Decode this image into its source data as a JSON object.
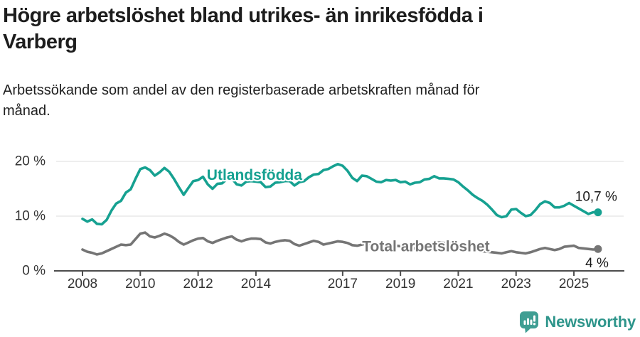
{
  "header": {
    "title": "Högre arbetslöshet bland utrikes- än inrikesfödda i Varberg",
    "title_lines": [
      "Högre arbetslöshet bland utrikes- än inrikesfödda i",
      "Varberg"
    ],
    "subtitle": "Arbetssökande som andel av den registerbaserade arbetskraften månad för månad.",
    "subtitle_lines": [
      "Arbetssökande som andel av den registerbaserade arbetskraften månad för",
      "månad."
    ]
  },
  "footer": {
    "brand": "Newsworthy",
    "brand_color": "#2e958b",
    "logo_icon": "speech-bubble-bar-chart"
  },
  "chart_data": {
    "type": "line",
    "title": "Högre arbetslöshet bland utrikes- än inrikesfödda i Varberg",
    "subtitle": "Arbetssökande som andel av den registerbaserade arbetskraften månad för månad.",
    "unit": "%",
    "grid": "horizontal-only",
    "x_start": 2008,
    "x_step": 0.16666667,
    "x_ticks": [
      2008,
      2010,
      2012,
      2014,
      2017,
      2019,
      2021,
      2023,
      2025
    ],
    "y_ticks": [
      0,
      10,
      20
    ],
    "y_tick_labels": [
      "0 %",
      "10 %",
      "20 %"
    ],
    "ylim": [
      0,
      21.5
    ],
    "xlim": [
      2007.1,
      2026.8
    ],
    "series": [
      {
        "name": "Utlandsfödda",
        "color": "#16a191",
        "end_label": "10,7 %",
        "end_value": 10.7,
        "label_pos": {
          "x": 2013.95,
          "y": 17.5
        },
        "values": [
          9.5,
          9.0,
          9.4,
          8.6,
          8.5,
          9.3,
          11.0,
          12.3,
          12.8,
          14.3,
          14.9,
          16.8,
          18.6,
          18.9,
          18.4,
          17.4,
          18.0,
          18.8,
          18.1,
          16.8,
          15.3,
          13.9,
          15.2,
          16.4,
          16.6,
          17.2,
          15.8,
          15.0,
          15.9,
          16.0,
          16.8,
          16.9,
          15.8,
          15.6,
          16.3,
          16.4,
          16.3,
          16.2,
          15.3,
          15.4,
          16.1,
          16.2,
          16.4,
          16.4,
          15.6,
          16.2,
          16.4,
          17.1,
          17.6,
          17.7,
          18.4,
          18.6,
          19.1,
          19.5,
          19.2,
          18.3,
          17.0,
          16.4,
          17.4,
          17.3,
          16.8,
          16.3,
          16.2,
          16.6,
          16.5,
          16.6,
          16.2,
          16.3,
          15.8,
          16.1,
          16.2,
          16.7,
          16.8,
          17.3,
          16.9,
          16.9,
          16.8,
          16.7,
          16.2,
          15.4,
          14.7,
          13.9,
          13.3,
          12.8,
          12.1,
          11.2,
          10.2,
          9.8,
          10.0,
          11.2,
          11.3,
          10.6,
          10.0,
          10.2,
          11.1,
          12.2,
          12.7,
          12.4,
          11.6,
          11.6,
          11.9,
          12.4,
          11.9,
          11.4,
          10.9,
          10.4,
          10.7,
          10.7
        ]
      },
      {
        "name": "Total arbetslöshet",
        "color": "#757575",
        "end_label": "4 %",
        "end_value": 4,
        "label_pos": {
          "x": 2019.88,
          "y": 4.4
        },
        "values": [
          3.9,
          3.5,
          3.3,
          3.0,
          3.2,
          3.6,
          4.0,
          4.4,
          4.8,
          4.7,
          4.8,
          5.8,
          6.8,
          7.0,
          6.3,
          6.1,
          6.4,
          6.8,
          6.5,
          6.0,
          5.3,
          4.8,
          5.2,
          5.6,
          5.9,
          6.0,
          5.4,
          5.1,
          5.5,
          5.8,
          6.1,
          6.3,
          5.7,
          5.4,
          5.7,
          5.9,
          5.9,
          5.8,
          5.2,
          5.0,
          5.3,
          5.5,
          5.6,
          5.5,
          4.9,
          4.6,
          4.9,
          5.2,
          5.5,
          5.3,
          4.8,
          5.0,
          5.2,
          5.4,
          5.3,
          5.1,
          4.7,
          4.6,
          4.8,
          5.0,
          4.9,
          4.7,
          4.4,
          4.3,
          4.5,
          4.6,
          4.5,
          4.4,
          4.2,
          4.1,
          4.3,
          4.5,
          4.6,
          5.0,
          5.2,
          5.1,
          5.0,
          4.9,
          4.7,
          4.5,
          4.2,
          4.0,
          3.8,
          3.6,
          3.5,
          3.4,
          3.3,
          3.2,
          3.4,
          3.6,
          3.4,
          3.3,
          3.2,
          3.4,
          3.7,
          4.0,
          4.2,
          4.0,
          3.8,
          4.0,
          4.4,
          4.5,
          4.6,
          4.2,
          4.1,
          4.0,
          3.9,
          4.0
        ]
      }
    ]
  }
}
